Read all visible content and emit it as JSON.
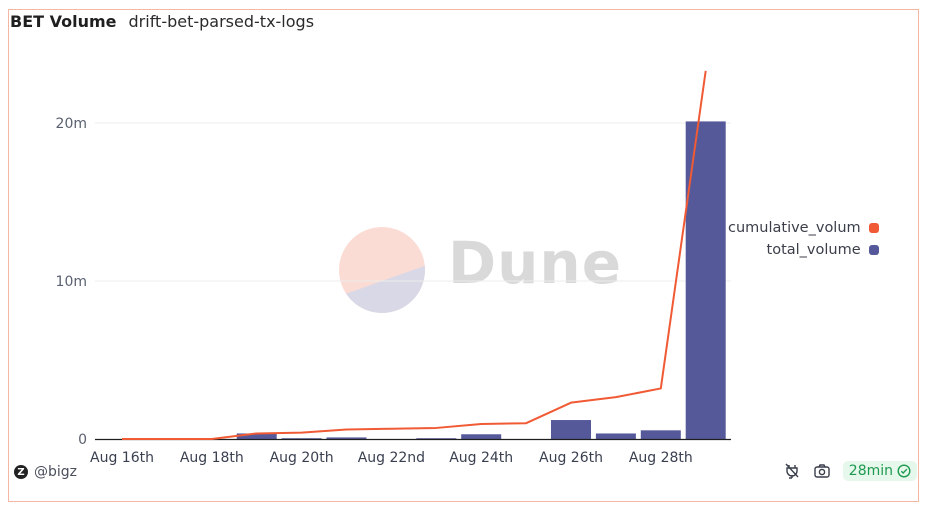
{
  "header": {
    "title": "BET Volume",
    "subtitle": "drift-bet-parsed-tx-logs"
  },
  "watermark": {
    "text": "Dune"
  },
  "legend": {
    "items": [
      {
        "label": "cumulative_volum",
        "color": "#f05a34"
      },
      {
        "label": "total_volume",
        "color": "#55599a"
      }
    ]
  },
  "footer": {
    "author": "@bigz",
    "avatar_letter": "Z",
    "refresh_badge": "28min",
    "icons": [
      "embed-icon",
      "camera-icon",
      "check-badge-icon"
    ]
  },
  "chart_data": {
    "type": "bar",
    "title": "BET Volume",
    "subtitle": "drift-bet-parsed-tx-logs",
    "xlabel": "",
    "ylabel": "",
    "ylim": [
      0,
      23500000
    ],
    "yticks": [
      {
        "value": 0,
        "label": "0"
      },
      {
        "value": 10000000,
        "label": "10m"
      },
      {
        "value": 20000000,
        "label": "20m"
      }
    ],
    "xtick_labels": [
      "Aug 16th",
      "Aug 18th",
      "Aug 20th",
      "Aug 22nd",
      "Aug 24th",
      "Aug 26th",
      "Aug 28th"
    ],
    "grid": true,
    "legend_position": "right",
    "categories": [
      "Aug 16",
      "Aug 17",
      "Aug 18",
      "Aug 19",
      "Aug 20",
      "Aug 21",
      "Aug 22",
      "Aug 23",
      "Aug 24",
      "Aug 25",
      "Aug 26",
      "Aug 27",
      "Aug 28",
      "Aug 29"
    ],
    "series": [
      {
        "name": "total_volume",
        "type": "bar",
        "color": "#55599a",
        "values": [
          0,
          0,
          0,
          350000,
          50000,
          100000,
          0,
          50000,
          300000,
          0,
          1200000,
          350000,
          550000,
          20100000
        ]
      },
      {
        "name": "cumulative_volum",
        "type": "line",
        "color": "#f05a34",
        "values": [
          0,
          0,
          0,
          350000,
          400000,
          600000,
          650000,
          700000,
          950000,
          1000000,
          2300000,
          2650000,
          3200000,
          23300000
        ]
      }
    ]
  }
}
